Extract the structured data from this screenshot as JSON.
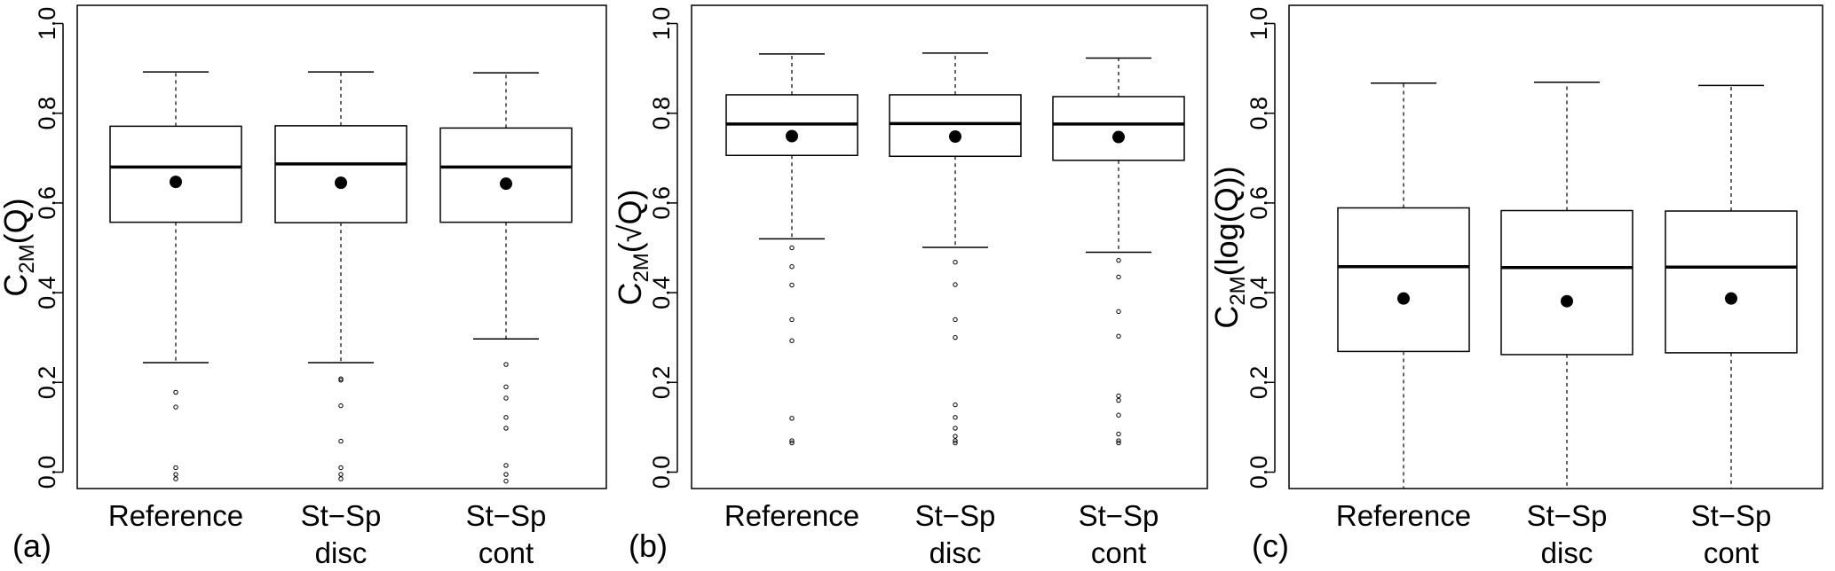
{
  "chart_data": [
    {
      "type": "box",
      "panel_label": "(a)",
      "ylabel": {
        "prefix": "C",
        "sub": "2M",
        "suffix": "(Q)"
      },
      "ylim": [
        0,
        1
      ],
      "yticks": [
        "0.0",
        "0.2",
        "0.4",
        "0.6",
        "0.8",
        "1.0"
      ],
      "categories": [
        {
          "line1": "Reference",
          "line2": ""
        },
        {
          "line1": "St−Sp",
          "line2": "disc"
        },
        {
          "line1": "St−Sp",
          "line2": "cont"
        }
      ],
      "boxes": [
        {
          "whisker_low": 0.244,
          "q1": 0.557,
          "median": 0.68,
          "q3": 0.771,
          "whisker_high": 0.892,
          "mean": 0.647,
          "outliers": [
            0.178,
            0.145,
            0.01,
            -0.005,
            -0.015
          ]
        },
        {
          "whisker_low": 0.244,
          "q1": 0.556,
          "median": 0.687,
          "q3": 0.772,
          "whisker_high": 0.892,
          "mean": 0.645,
          "outliers": [
            0.208,
            0.205,
            0.148,
            0.069,
            0.01,
            -0.005,
            -0.015
          ]
        },
        {
          "whisker_low": 0.297,
          "q1": 0.557,
          "median": 0.68,
          "q3": 0.767,
          "whisker_high": 0.89,
          "mean": 0.643,
          "outliers": [
            0.24,
            0.19,
            0.165,
            0.122,
            0.098,
            0.015,
            -0.005,
            -0.02
          ]
        }
      ]
    },
    {
      "type": "box",
      "panel_label": "(b)",
      "ylabel": {
        "prefix": "C",
        "sub": "2M",
        "suffix": "(√Q)"
      },
      "ylim": [
        0,
        1
      ],
      "yticks": [
        "0.0",
        "0.2",
        "0.4",
        "0.6",
        "0.8",
        "1.0"
      ],
      "categories": [
        {
          "line1": "Reference",
          "line2": ""
        },
        {
          "line1": "St−Sp",
          "line2": "disc"
        },
        {
          "line1": "St−Sp",
          "line2": "cont"
        }
      ],
      "boxes": [
        {
          "whisker_low": 0.52,
          "q1": 0.706,
          "median": 0.776,
          "q3": 0.841,
          "whisker_high": 0.932,
          "mean": 0.749,
          "outliers": [
            0.5,
            0.458,
            0.417,
            0.34,
            0.293,
            0.12,
            0.07,
            0.065
          ]
        },
        {
          "whisker_low": 0.501,
          "q1": 0.704,
          "median": 0.777,
          "q3": 0.841,
          "whisker_high": 0.934,
          "mean": 0.748,
          "outliers": [
            0.468,
            0.418,
            0.34,
            0.3,
            0.15,
            0.122,
            0.098,
            0.08,
            0.07,
            0.065
          ]
        },
        {
          "whisker_low": 0.49,
          "q1": 0.695,
          "median": 0.776,
          "q3": 0.837,
          "whisker_high": 0.923,
          "mean": 0.747,
          "outliers": [
            0.472,
            0.435,
            0.358,
            0.303,
            0.17,
            0.16,
            0.127,
            0.085,
            0.07,
            0.065
          ]
        }
      ]
    },
    {
      "type": "box",
      "panel_label": "(c)",
      "ylabel": {
        "prefix": "C",
        "sub": "2M",
        "suffix": "(log(Q))"
      },
      "ylim": [
        0,
        1
      ],
      "yticks": [
        "0.0",
        "0.2",
        "0.4",
        "0.6",
        "0.8",
        "1.0"
      ],
      "categories": [
        {
          "line1": "Reference",
          "line2": ""
        },
        {
          "line1": "St−Sp",
          "line2": "disc"
        },
        {
          "line1": "St−Sp",
          "line2": "cont"
        }
      ],
      "boxes": [
        {
          "whisker_low": -0.04,
          "q1": 0.269,
          "median": 0.458,
          "q3": 0.589,
          "whisker_high": 0.867,
          "mean": 0.387,
          "outliers": []
        },
        {
          "whisker_low": -0.04,
          "q1": 0.262,
          "median": 0.456,
          "q3": 0.583,
          "whisker_high": 0.869,
          "mean": 0.381,
          "outliers": []
        },
        {
          "whisker_low": -0.04,
          "q1": 0.266,
          "median": 0.457,
          "q3": 0.582,
          "whisker_high": 0.862,
          "mean": 0.387,
          "outliers": []
        }
      ]
    }
  ]
}
